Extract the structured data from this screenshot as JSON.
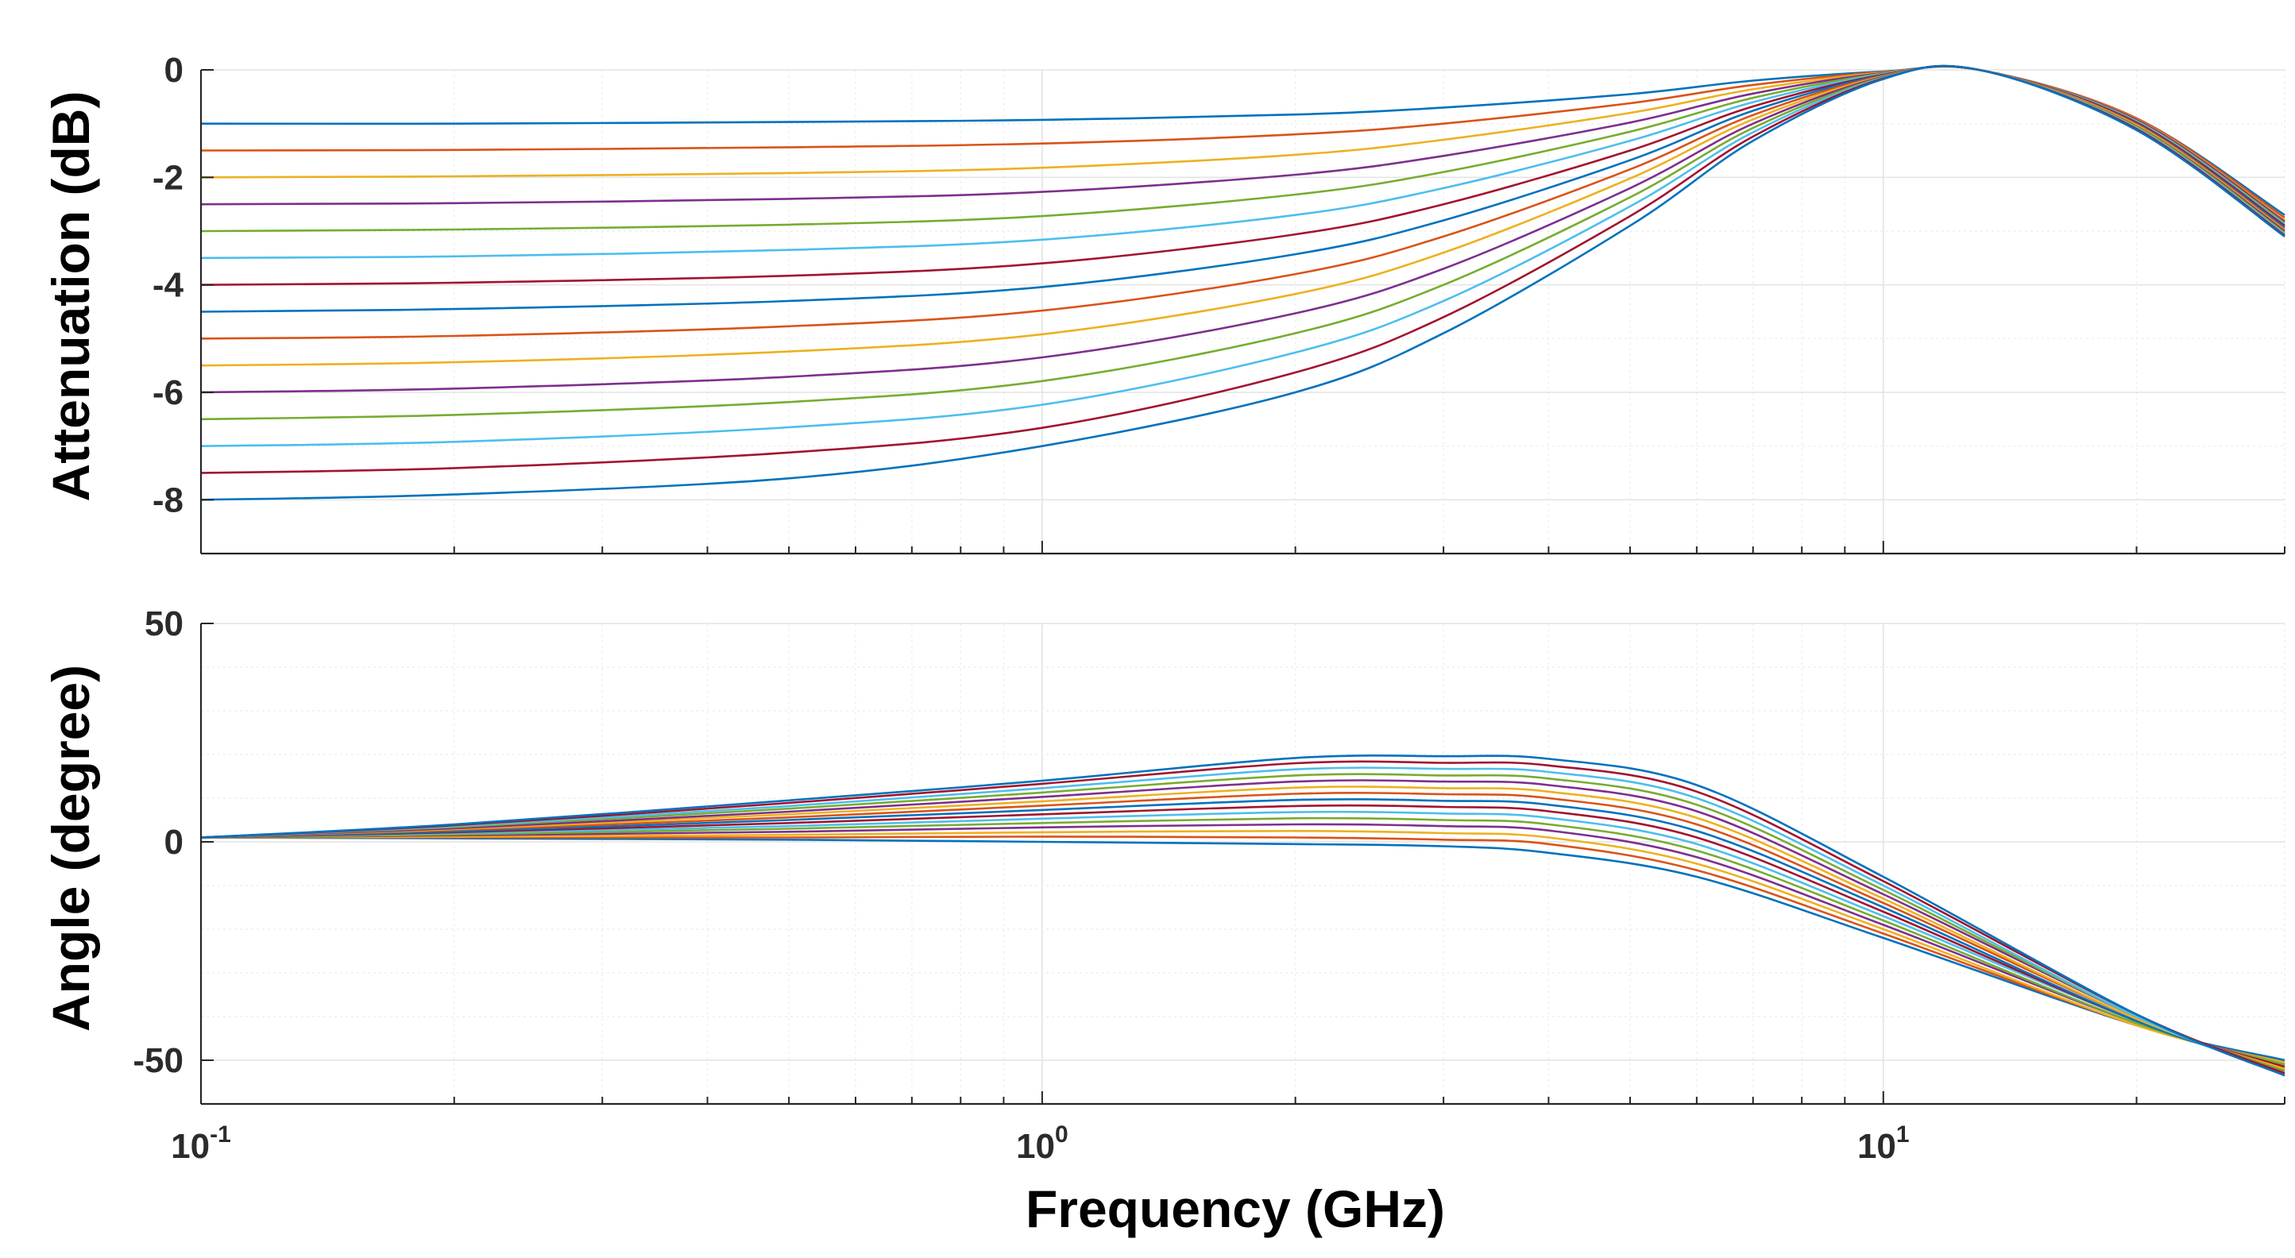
{
  "chart_data": [
    {
      "type": "line",
      "ylabel": "Attenuation (dB)",
      "xscale": "log",
      "xlim": [
        0.1,
        30
      ],
      "ylim": [
        -9,
        0
      ],
      "yticks": [
        "0",
        "-2",
        "-4",
        "-6",
        "-8"
      ],
      "ytick_values": [
        0,
        -2,
        -4,
        -6,
        -8
      ],
      "grid": true,
      "x": [
        0.1,
        0.2,
        0.5,
        1,
        2,
        3,
        5,
        7,
        10,
        13,
        20,
        30
      ],
      "series": [
        {
          "color": "#0072BD",
          "values": [
            -1.0,
            -1.0,
            -0.97,
            -0.93,
            -0.83,
            -0.7,
            -0.45,
            -0.2,
            -0.03,
            0,
            -0.9,
            -2.7
          ]
        },
        {
          "color": "#D95319",
          "values": [
            -1.5,
            -1.49,
            -1.44,
            -1.37,
            -1.2,
            -1.0,
            -0.62,
            -0.28,
            -0.04,
            0,
            -0.9,
            -2.75
          ]
        },
        {
          "color": "#EDB120",
          "values": [
            -2.0,
            -1.98,
            -1.92,
            -1.82,
            -1.58,
            -1.3,
            -0.8,
            -0.36,
            -0.05,
            0,
            -0.92,
            -2.8
          ]
        },
        {
          "color": "#7E2F8E",
          "values": [
            -2.5,
            -2.48,
            -2.4,
            -2.27,
            -1.95,
            -1.6,
            -0.98,
            -0.44,
            -0.06,
            0,
            -0.93,
            -2.82
          ]
        },
        {
          "color": "#77AC30",
          "values": [
            -3.0,
            -2.97,
            -2.88,
            -2.72,
            -2.32,
            -1.9,
            -1.15,
            -0.52,
            -0.07,
            0,
            -0.95,
            -2.85
          ]
        },
        {
          "color": "#4DBEEE",
          "values": [
            -3.5,
            -3.47,
            -3.35,
            -3.16,
            -2.7,
            -2.2,
            -1.32,
            -0.6,
            -0.08,
            0,
            -0.96,
            -2.88
          ]
        },
        {
          "color": "#A2142F",
          "values": [
            -4.0,
            -3.96,
            -3.83,
            -3.6,
            -3.06,
            -2.5,
            -1.5,
            -0.68,
            -0.09,
            0,
            -0.98,
            -2.9
          ]
        },
        {
          "color": "#0072BD",
          "values": [
            -4.5,
            -4.45,
            -4.3,
            -4.04,
            -3.43,
            -2.8,
            -1.68,
            -0.76,
            -0.1,
            0,
            -1.0,
            -2.93
          ]
        },
        {
          "color": "#D95319",
          "values": [
            -5.0,
            -4.95,
            -4.77,
            -4.48,
            -3.8,
            -3.1,
            -1.85,
            -0.84,
            -0.11,
            0,
            -1.01,
            -2.96
          ]
        },
        {
          "color": "#EDB120",
          "values": [
            -5.5,
            -5.44,
            -5.24,
            -4.92,
            -4.17,
            -3.4,
            -2.02,
            -0.92,
            -0.12,
            0,
            -1.03,
            -2.98
          ]
        },
        {
          "color": "#7E2F8E",
          "values": [
            -6.0,
            -5.93,
            -5.71,
            -5.35,
            -4.53,
            -3.7,
            -2.2,
            -1.0,
            -0.13,
            0,
            -1.05,
            -3.0
          ]
        },
        {
          "color": "#77AC30",
          "values": [
            -6.5,
            -6.42,
            -6.18,
            -5.79,
            -4.9,
            -4.0,
            -2.37,
            -1.08,
            -0.14,
            0,
            -1.06,
            -3.03
          ]
        },
        {
          "color": "#4DBEEE",
          "values": [
            -7.0,
            -6.92,
            -6.65,
            -6.23,
            -5.26,
            -4.3,
            -2.54,
            -1.16,
            -0.15,
            0,
            -1.08,
            -3.06
          ]
        },
        {
          "color": "#A2142F",
          "values": [
            -7.5,
            -7.41,
            -7.12,
            -6.66,
            -5.63,
            -4.6,
            -2.72,
            -1.24,
            -0.16,
            0,
            -1.1,
            -3.08
          ]
        },
        {
          "color": "#0072BD",
          "values": [
            -8.0,
            -7.9,
            -7.6,
            -7.0,
            -6.0,
            -4.9,
            -2.9,
            -1.32,
            -0.17,
            0,
            -1.12,
            -3.1
          ]
        }
      ]
    },
    {
      "type": "line",
      "ylabel": "Angle (degree)",
      "xlabel": "Frequency (GHz)",
      "xscale": "log",
      "xlim": [
        0.1,
        30
      ],
      "ylim": [
        -60,
        50
      ],
      "yticks": [
        "50",
        "0",
        "-50"
      ],
      "ytick_values": [
        50,
        0,
        -50
      ],
      "xticks": [
        {
          "base": "10",
          "exp": "-1",
          "value": 0.1
        },
        {
          "base": "10",
          "exp": "0",
          "value": 1
        },
        {
          "base": "10",
          "exp": "1",
          "value": 10
        }
      ],
      "grid": true,
      "x": [
        0.1,
        0.2,
        0.5,
        1,
        2,
        3,
        4,
        6,
        10,
        20,
        30
      ],
      "series": [
        {
          "color": "#0072BD",
          "values": [
            1,
            0.8,
            0.5,
            0,
            -0.5,
            -1,
            -2.5,
            -8,
            -22,
            -42,
            -50
          ]
        },
        {
          "color": "#D95319",
          "values": [
            1,
            1.0,
            1.0,
            1.2,
            1.0,
            0.5,
            -0.5,
            -6.5,
            -21,
            -42,
            -50.5
          ]
        },
        {
          "color": "#EDB120",
          "values": [
            1,
            1.2,
            1.6,
            2.2,
            2.5,
            2.0,
            1.0,
            -5,
            -20,
            -42,
            -50.5
          ]
        },
        {
          "color": "#7E2F8E",
          "values": [
            1,
            1.5,
            2.3,
            3.3,
            4.0,
            3.6,
            2.6,
            -3.5,
            -19,
            -41.5,
            -51
          ]
        },
        {
          "color": "#77AC30",
          "values": [
            1,
            1.7,
            3.0,
            4.3,
            5.4,
            5.0,
            4.0,
            -2,
            -18,
            -41.5,
            -51
          ]
        },
        {
          "color": "#4DBEEE",
          "values": [
            1,
            2.0,
            3.6,
            5.3,
            6.8,
            6.5,
            5.5,
            -0.5,
            -17,
            -41,
            -51.5
          ]
        },
        {
          "color": "#A2142F",
          "values": [
            1,
            2.2,
            4.3,
            6.3,
            8.2,
            8.0,
            7.0,
            1,
            -16,
            -41,
            -51.5
          ]
        },
        {
          "color": "#0072BD",
          "values": [
            1,
            2.4,
            5.0,
            7.3,
            9.6,
            9.4,
            8.5,
            2.5,
            -15,
            -41,
            -52
          ]
        },
        {
          "color": "#D95319",
          "values": [
            1,
            2.7,
            5.6,
            8.3,
            11.0,
            10.9,
            10.0,
            4,
            -14,
            -40.5,
            -52
          ]
        },
        {
          "color": "#EDB120",
          "values": [
            1,
            2.9,
            6.3,
            9.3,
            12.4,
            12.3,
            11.5,
            5.5,
            -13,
            -40.5,
            -52
          ]
        },
        {
          "color": "#7E2F8E",
          "values": [
            1,
            3.1,
            6.9,
            10.3,
            13.8,
            13.8,
            13.0,
            7,
            -12,
            -40,
            -52.5
          ]
        },
        {
          "color": "#77AC30",
          "values": [
            1,
            3.4,
            7.6,
            11.3,
            15.2,
            15.2,
            14.5,
            8.5,
            -11,
            -40,
            -52.5
          ]
        },
        {
          "color": "#4DBEEE",
          "values": [
            1,
            3.6,
            8.2,
            12.3,
            16.6,
            16.7,
            16.0,
            10,
            -10,
            -40,
            -53
          ]
        },
        {
          "color": "#A2142F",
          "values": [
            1,
            3.8,
            8.9,
            13.3,
            18.0,
            18.1,
            17.5,
            11.5,
            -9,
            -39.5,
            -53
          ]
        },
        {
          "color": "#0072BD",
          "values": [
            1,
            4.0,
            9.5,
            14.0,
            19.2,
            19.6,
            19.0,
            13,
            -8,
            -39.5,
            -53.5
          ]
        }
      ]
    }
  ]
}
